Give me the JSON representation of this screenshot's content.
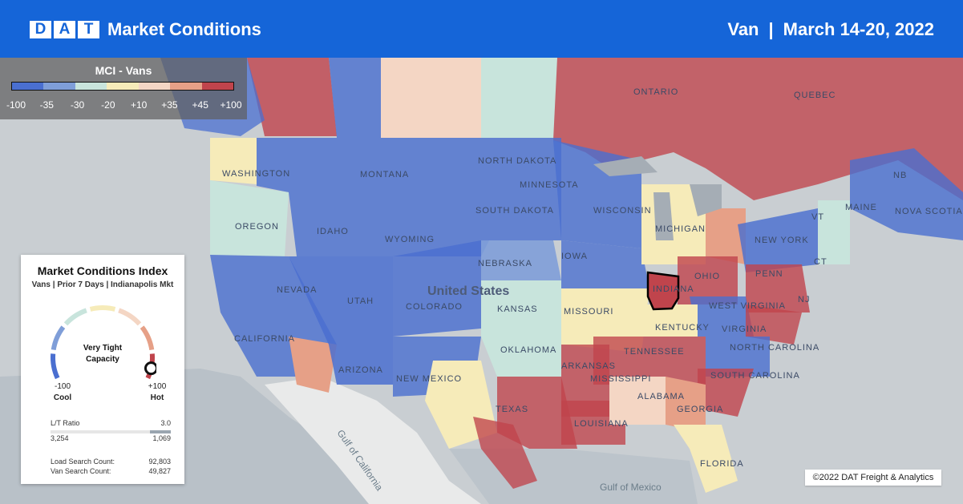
{
  "header": {
    "logo_letters": [
      "D",
      "A",
      "T"
    ],
    "title": "Market Conditions",
    "equipment": "Van",
    "separator": "|",
    "date_range": "March 14-20, 2022"
  },
  "scale": {
    "title": "MCI - Vans",
    "tick_labels": [
      "-100",
      "-35",
      "-30",
      "-20",
      "+10",
      "+35",
      "+45",
      "+100"
    ],
    "band_colors": [
      "#4a6fd0",
      "#7f9ed8",
      "#c8e4dc",
      "#f6ebb9",
      "#f4d6c4",
      "#e6a087",
      "#c0444c"
    ]
  },
  "map_labels": {
    "country": "United States",
    "provinces": [
      "ONTARIO",
      "QUEBEC",
      "NB",
      "NOVA SCOTIA"
    ],
    "states": [
      "WASHINGTON",
      "OREGON",
      "IDAHO",
      "MONTANA",
      "NORTH DAKOTA",
      "SOUTH DAKOTA",
      "WYOMING",
      "NEBRASKA",
      "NEVADA",
      "UTAH",
      "COLORADO",
      "KANSAS",
      "CALIFORNIA",
      "ARIZONA",
      "NEW MEXICO",
      "OKLAHOMA",
      "TEXAS",
      "MINNESOTA",
      "WISCONSIN",
      "IOWA",
      "MISSOURI",
      "MICHIGAN",
      "INDIANA",
      "OHIO",
      "PENN",
      "NEW YORK",
      "MAINE",
      "VT",
      "NJ",
      "WEST VIRGINIA",
      "VIRGINIA",
      "NORTH CAROLINA",
      "SOUTH CAROLINA",
      "KENTUCKY",
      "TENNESSEE",
      "ARKANSAS",
      "MISSISSIPPI",
      "ALABAMA",
      "GEORGIA",
      "LOUISIANA",
      "FLORIDA",
      "CT"
    ],
    "water": [
      "Gulf of California",
      "Gulf of Mexico"
    ]
  },
  "panel": {
    "title": "Market Conditions Index",
    "subtitle": "Vans | Prior 7 Days | Indianapolis Mkt",
    "capacity_line1": "Very Tight",
    "capacity_line2": "Capacity",
    "gauge_min": "-100",
    "gauge_min_label": "Cool",
    "gauge_max": "+100",
    "gauge_max_label": "Hot",
    "gauge_value": 100,
    "lt_ratio_label": "L/T Ratio",
    "lt_ratio_value": "3.0",
    "loads": "3,254",
    "trucks": "1,069",
    "load_search_label": "Load Search Count:",
    "load_search_value": "92,803",
    "van_search_label": "Van Search Count:",
    "van_search_value": "49,827"
  },
  "copyright": "©2022 DAT Freight & Analytics",
  "colors": {
    "header_bg": "#1565d8",
    "cool": "#4a6fd0",
    "hot": "#c0444c",
    "selected_market_outline": "#000000"
  }
}
